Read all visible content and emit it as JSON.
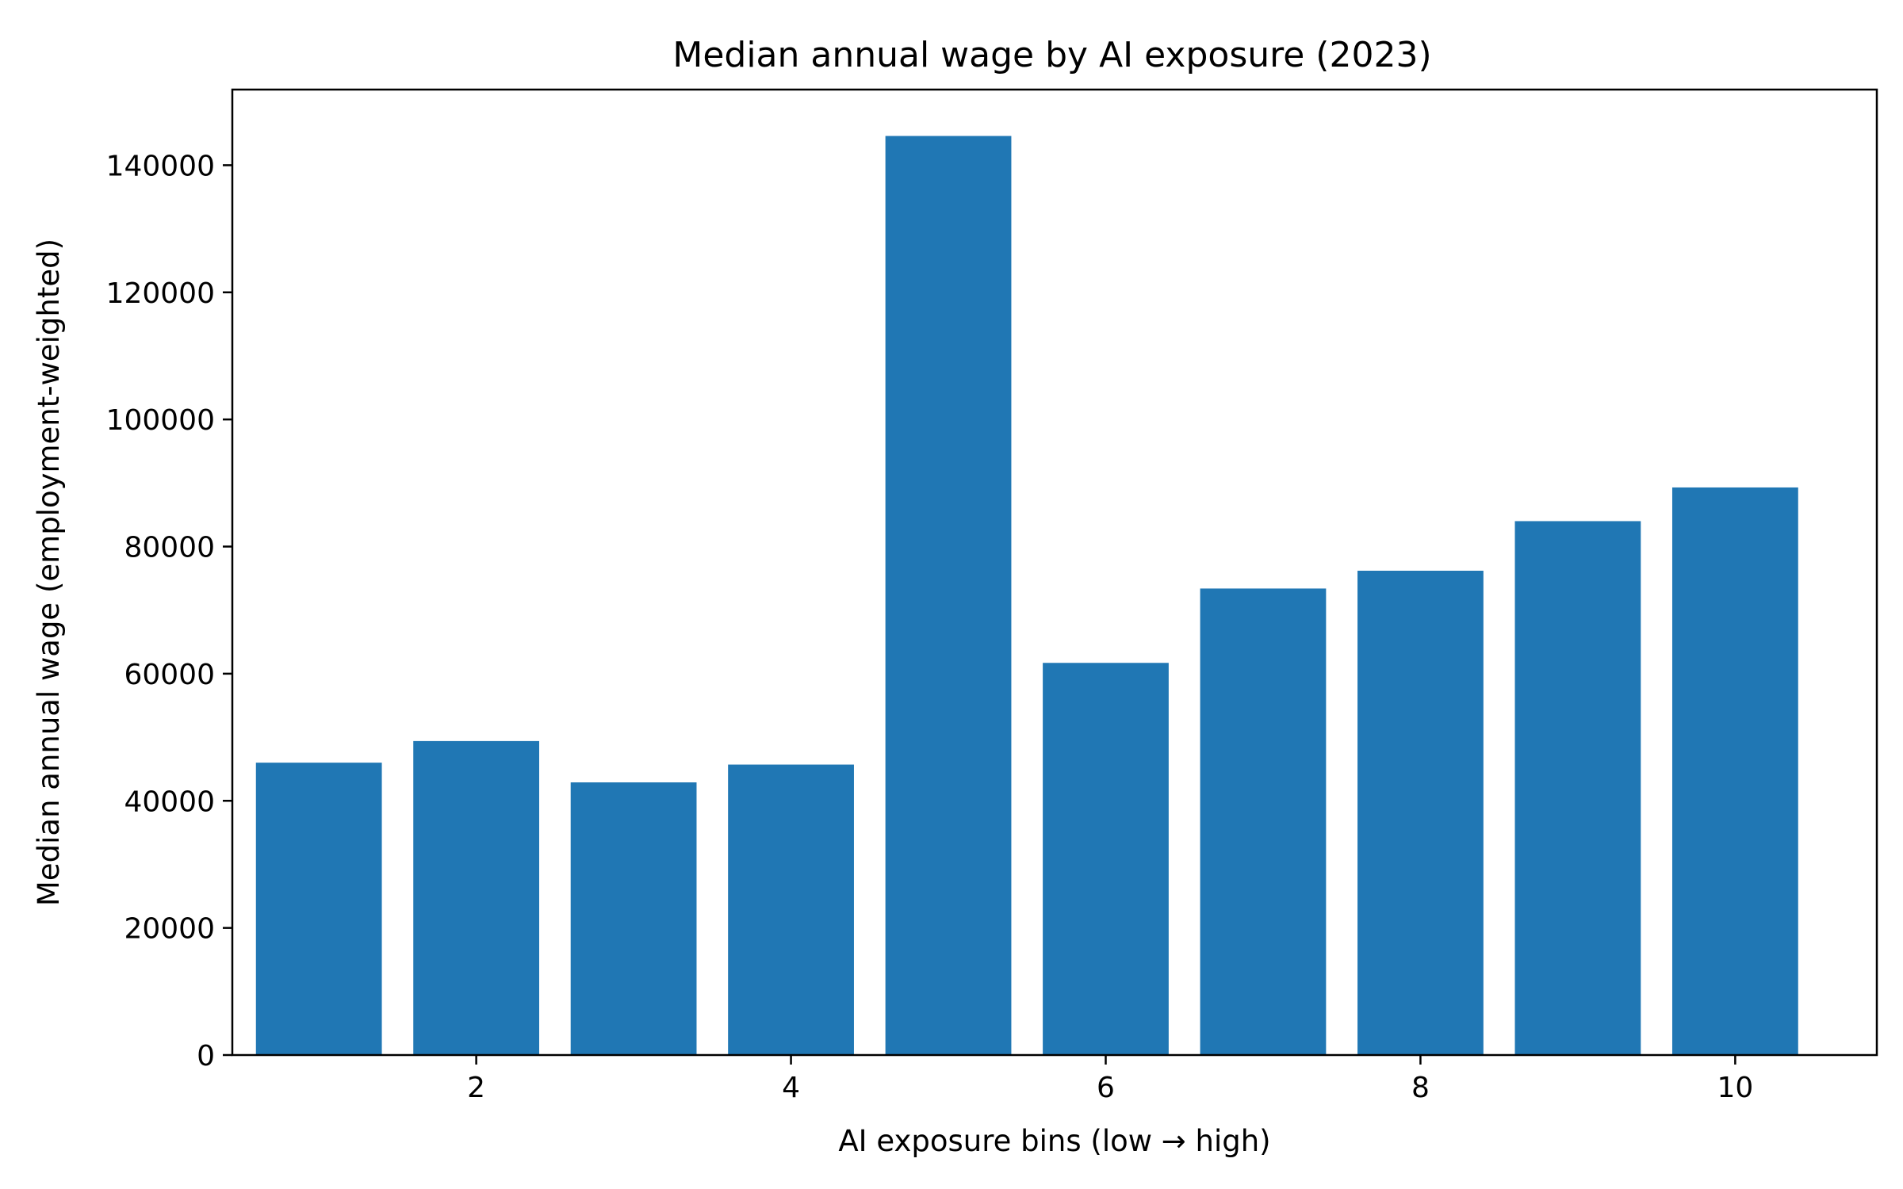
{
  "chart_data": {
    "type": "bar",
    "title": "Median annual wage by AI exposure (2023)",
    "xlabel": "AI exposure bins (low → high)",
    "ylabel": "Median annual wage (employment-weighted)",
    "x": [
      1,
      2,
      3,
      4,
      5,
      6,
      7,
      8,
      9,
      10
    ],
    "values": [
      46000,
      49400,
      42900,
      45700,
      144600,
      61700,
      73400,
      76200,
      84000,
      89300
    ],
    "xlim": [
      0.45,
      10.9
    ],
    "ylim": [
      0,
      151900
    ],
    "xticks": [
      2,
      4,
      6,
      8,
      10
    ],
    "xtick_labels": [
      "2",
      "4",
      "6",
      "8",
      "10"
    ],
    "yticks": [
      0,
      20000,
      40000,
      60000,
      80000,
      100000,
      120000,
      140000
    ],
    "ytick_labels": [
      "0",
      "20000",
      "40000",
      "60000",
      "80000",
      "100000",
      "120000",
      "140000"
    ],
    "bar_width": 0.8,
    "bar_color": "#2077b4",
    "grid": false,
    "legend": false
  }
}
